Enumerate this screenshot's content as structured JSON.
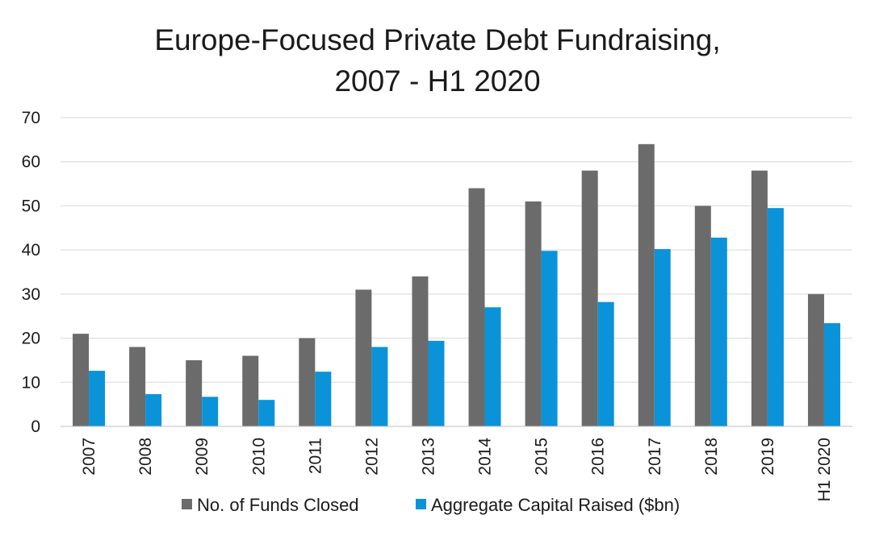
{
  "chart_data": {
    "type": "bar",
    "title": "Europe-Focused Private Debt Fundraising,",
    "subtitle": "2007 - H1 2020",
    "xlabel": "",
    "ylabel": "",
    "ylim": [
      0,
      70
    ],
    "yticks": [
      0,
      10,
      20,
      30,
      40,
      50,
      60,
      70
    ],
    "grid": true,
    "legend_position": "bottom",
    "categories": [
      "2007",
      "2008",
      "2009",
      "2010",
      "2011",
      "2012",
      "2013",
      "2014",
      "2015",
      "2016",
      "2017",
      "2018",
      "2019",
      "H1 2020"
    ],
    "series": [
      {
        "name": "No. of Funds Closed",
        "color": "#6b6b6b",
        "values": [
          21,
          18,
          15,
          16,
          20,
          31,
          34,
          54,
          51,
          58,
          64,
          50,
          58,
          30
        ]
      },
      {
        "name": "Aggregate Capital Raised ($bn)",
        "color": "#0a93d8",
        "values": [
          12.6,
          7.3,
          6.7,
          6.0,
          12.4,
          18.0,
          19.4,
          27.0,
          39.8,
          28.2,
          40.2,
          42.8,
          49.5,
          23.4
        ]
      }
    ]
  }
}
